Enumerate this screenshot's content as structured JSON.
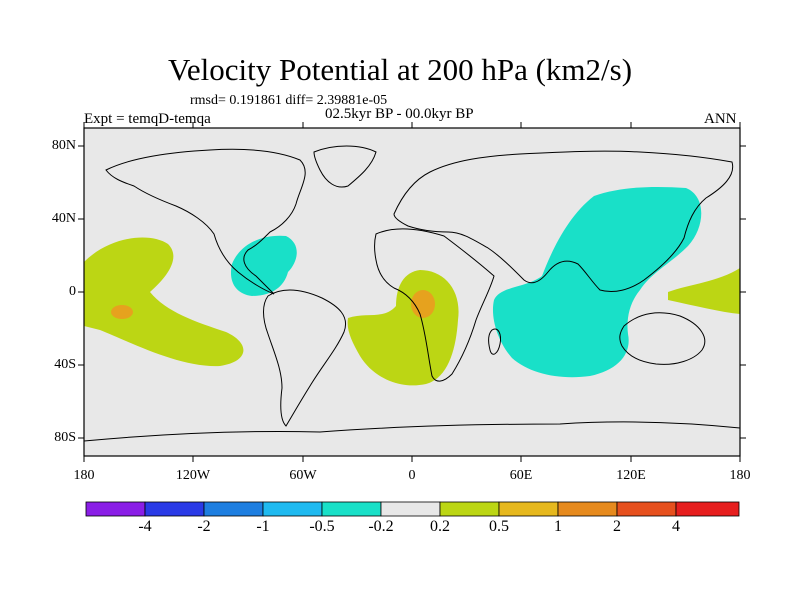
{
  "title": "Velocity Potential at 200 hPa (km2/s)",
  "stats": "rmsd= 0.191861 diff= 2.39881e-05",
  "period": "02.5kyr BP - 00.0kyr BP",
  "experiment": "Expt = temqD-temqa",
  "season": "ANN",
  "lat_labels": [
    "80N",
    "40N",
    "0",
    "40S",
    "80S"
  ],
  "lon_labels": [
    "180",
    "120W",
    "60W",
    "0",
    "60E",
    "120E",
    "180"
  ],
  "colorbar": {
    "colors": [
      "#8a1ee6",
      "#2a3ae6",
      "#1e7ee0",
      "#1fbaf0",
      "#19e0c8",
      "#e8e8e8",
      "#bcd614",
      "#e6b81e",
      "#e68a1e",
      "#e6501e",
      "#e61e1e"
    ],
    "labels": [
      "-4",
      "-2",
      "-1",
      "-0.5",
      "-0.2",
      "0.2",
      "0.5",
      "1",
      "2",
      "4"
    ]
  },
  "colors": {
    "background": "#e8e8e8",
    "negative_anomaly": "#19e0c8",
    "positive_anomaly": "#bcd614",
    "strong_positive": "#e6a21e"
  }
}
